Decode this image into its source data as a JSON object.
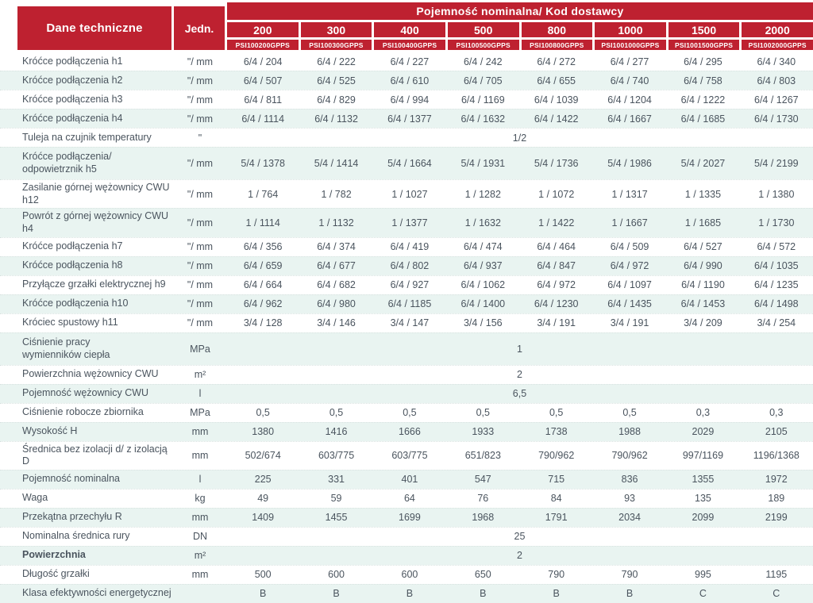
{
  "colors": {
    "brand_red": "#be2130",
    "row_tint": "#e9f4f1",
    "text": "#4a545e",
    "header_text": "#ffffff"
  },
  "header": {
    "dane_techniczne": "Dane techniczne",
    "jedn": "Jedn.",
    "group_title": "Pojemność nominalna/ Kod dostawcy",
    "columns": [
      {
        "size": "200",
        "code": "PSI100200GPPS"
      },
      {
        "size": "300",
        "code": "PSI100300GPPS"
      },
      {
        "size": "400",
        "code": "PSI100400GPPS"
      },
      {
        "size": "500",
        "code": "PSI100500GPPS"
      },
      {
        "size": "800",
        "code": "PSI100800GPPS"
      },
      {
        "size": "1000",
        "code": "PSI1001000GPPS"
      },
      {
        "size": "1500",
        "code": "PSI1001500GPPS"
      },
      {
        "size": "2000",
        "code": "PSI1002000GPPS"
      }
    ]
  },
  "table": {
    "rows": [
      {
        "label": "Króćce podłączenia h1",
        "unit": "\"/ mm",
        "values": [
          "6/4 / 204",
          "6/4 / 222",
          "6/4 / 227",
          "6/4 / 242",
          "6/4 / 272",
          "6/4 / 277",
          "6/4 / 295",
          "6/4 / 340"
        ]
      },
      {
        "label": "Króćce podłączenia h2",
        "unit": "\"/ mm",
        "values": [
          "6/4 / 507",
          "6/4 / 525",
          "6/4 / 610",
          "6/4 / 705",
          "6/4 / 655",
          "6/4 / 740",
          "6/4 / 758",
          "6/4 / 803"
        ]
      },
      {
        "label": "Króćce podłączenia h3",
        "unit": "\"/ mm",
        "values": [
          "6/4 / 811",
          "6/4 / 829",
          "6/4 / 994",
          "6/4 / 1169",
          "6/4 / 1039",
          "6/4 / 1204",
          "6/4 / 1222",
          "6/4 / 1267"
        ]
      },
      {
        "label": "Króćce podłączenia h4",
        "unit": "\"/ mm",
        "values": [
          "6/4 / 1114",
          "6/4 / 1132",
          "6/4 / 1377",
          "6/4 / 1632",
          "6/4 / 1422",
          "6/4 / 1667",
          "6/4 / 1685",
          "6/4 / 1730"
        ]
      },
      {
        "label": "Tuleja na czujnik temperatury",
        "unit": "\"",
        "span": "1/2"
      },
      {
        "label": "Króćce podłączenia/\nodpowietrznik h5",
        "unit": "\"/ mm",
        "values": [
          "5/4 / 1378",
          "5/4 / 1414",
          "5/4 / 1664",
          "5/4 / 1931",
          "5/4 / 1736",
          "5/4 / 1986",
          "5/4 / 2027",
          "5/4 / 2199"
        ]
      },
      {
        "label": "Zasilanie górnej wężownicy CWU h12",
        "unit": "\"/ mm",
        "values": [
          "1 / 764",
          "1 / 782",
          "1 / 1027",
          "1 / 1282",
          "1 / 1072",
          "1 / 1317",
          "1 / 1335",
          "1 / 1380"
        ]
      },
      {
        "label": "Powrót z górnej wężownicy CWU h4",
        "unit": "\"/ mm",
        "values": [
          "1 / 1114",
          "1 / 1132",
          "1 / 1377",
          "1 / 1632",
          "1 / 1422",
          "1 / 1667",
          "1 / 1685",
          "1 / 1730"
        ]
      },
      {
        "label": "Króćce podłączenia h7",
        "unit": "\"/ mm",
        "values": [
          "6/4 / 356",
          "6/4 / 374",
          "6/4 / 419",
          "6/4 / 474",
          "6/4 / 464",
          "6/4 / 509",
          "6/4 / 527",
          "6/4 / 572"
        ]
      },
      {
        "label": "Króćce podłączenia h8",
        "unit": "\"/ mm",
        "values": [
          "6/4 / 659",
          "6/4 / 677",
          "6/4 / 802",
          "6/4 / 937",
          "6/4 / 847",
          "6/4 / 972",
          "6/4 / 990",
          "6/4 / 1035"
        ]
      },
      {
        "label": "Przyłącze grzałki elektrycznej h9",
        "unit": "\"/ mm",
        "values": [
          "6/4 / 664",
          "6/4 / 682",
          "6/4 / 927",
          "6/4 / 1062",
          "6/4 / 972",
          "6/4 / 1097",
          "6/4 / 1190",
          "6/4 / 1235"
        ]
      },
      {
        "label": "Króćce podłączenia h10",
        "unit": "\"/ mm",
        "values": [
          "6/4 / 962",
          "6/4 / 980",
          "6/4 / 1185",
          "6/4 / 1400",
          "6/4 / 1230",
          "6/4 / 1435",
          "6/4 / 1453",
          "6/4 / 1498"
        ]
      },
      {
        "label": "Króciec spustowy h11",
        "unit": "\"/ mm",
        "values": [
          "3/4 / 128",
          "3/4 / 146",
          "3/4 / 147",
          "3/4 / 156",
          "3/4 / 191",
          "3/4 / 191",
          "3/4 / 209",
          "3/4 / 254"
        ]
      },
      {
        "label": "Ciśnienie pracy\nwymienników ciepła",
        "unit": "MPa",
        "span": "1"
      },
      {
        "label": "Powierzchnia wężownicy CWU",
        "unit": "m²",
        "span": "2"
      },
      {
        "label": "Pojemność wężownicy CWU",
        "unit": "l",
        "span": "6,5"
      },
      {
        "label": "Ciśnienie robocze zbiornika",
        "unit": "MPa",
        "values": [
          "0,5",
          "0,5",
          "0,5",
          "0,5",
          "0,5",
          "0,5",
          "0,3",
          "0,3"
        ]
      },
      {
        "label": "Wysokość H",
        "unit": "mm",
        "values": [
          "1380",
          "1416",
          "1666",
          "1933",
          "1738",
          "1988",
          "2029",
          "2105"
        ]
      },
      {
        "label": "Średnica bez izolacji d/ z izolacją D",
        "unit": "mm",
        "values": [
          "502/674",
          "603/775",
          "603/775",
          "651/823",
          "790/962",
          "790/962",
          "997/1169",
          "1196/1368"
        ]
      },
      {
        "label": "Pojemność nominalna",
        "unit": "l",
        "values": [
          "225",
          "331",
          "401",
          "547",
          "715",
          "836",
          "1355",
          "1972"
        ]
      },
      {
        "label": "Waga",
        "unit": "kg",
        "values": [
          "49",
          "59",
          "64",
          "76",
          "84",
          "93",
          "135",
          "189"
        ]
      },
      {
        "label": "Przekątna przechyłu R",
        "unit": "mm",
        "values": [
          "1409",
          "1455",
          "1699",
          "1968",
          "1791",
          "2034",
          "2099",
          "2199"
        ]
      },
      {
        "label": "Nominalna średnica rury",
        "unit": "DN",
        "span": "25"
      },
      {
        "label": "Powierzchnia",
        "unit": "m²",
        "span": "2",
        "bold": true
      },
      {
        "label": "Długość grzałki",
        "unit": "mm",
        "values": [
          "500",
          "600",
          "600",
          "650",
          "790",
          "790",
          "995",
          "1195"
        ]
      },
      {
        "label": "Klasa efektywności energetycznej",
        "unit": "",
        "values": [
          "B",
          "B",
          "B",
          "B",
          "B",
          "B",
          "C",
          "C"
        ]
      }
    ]
  }
}
